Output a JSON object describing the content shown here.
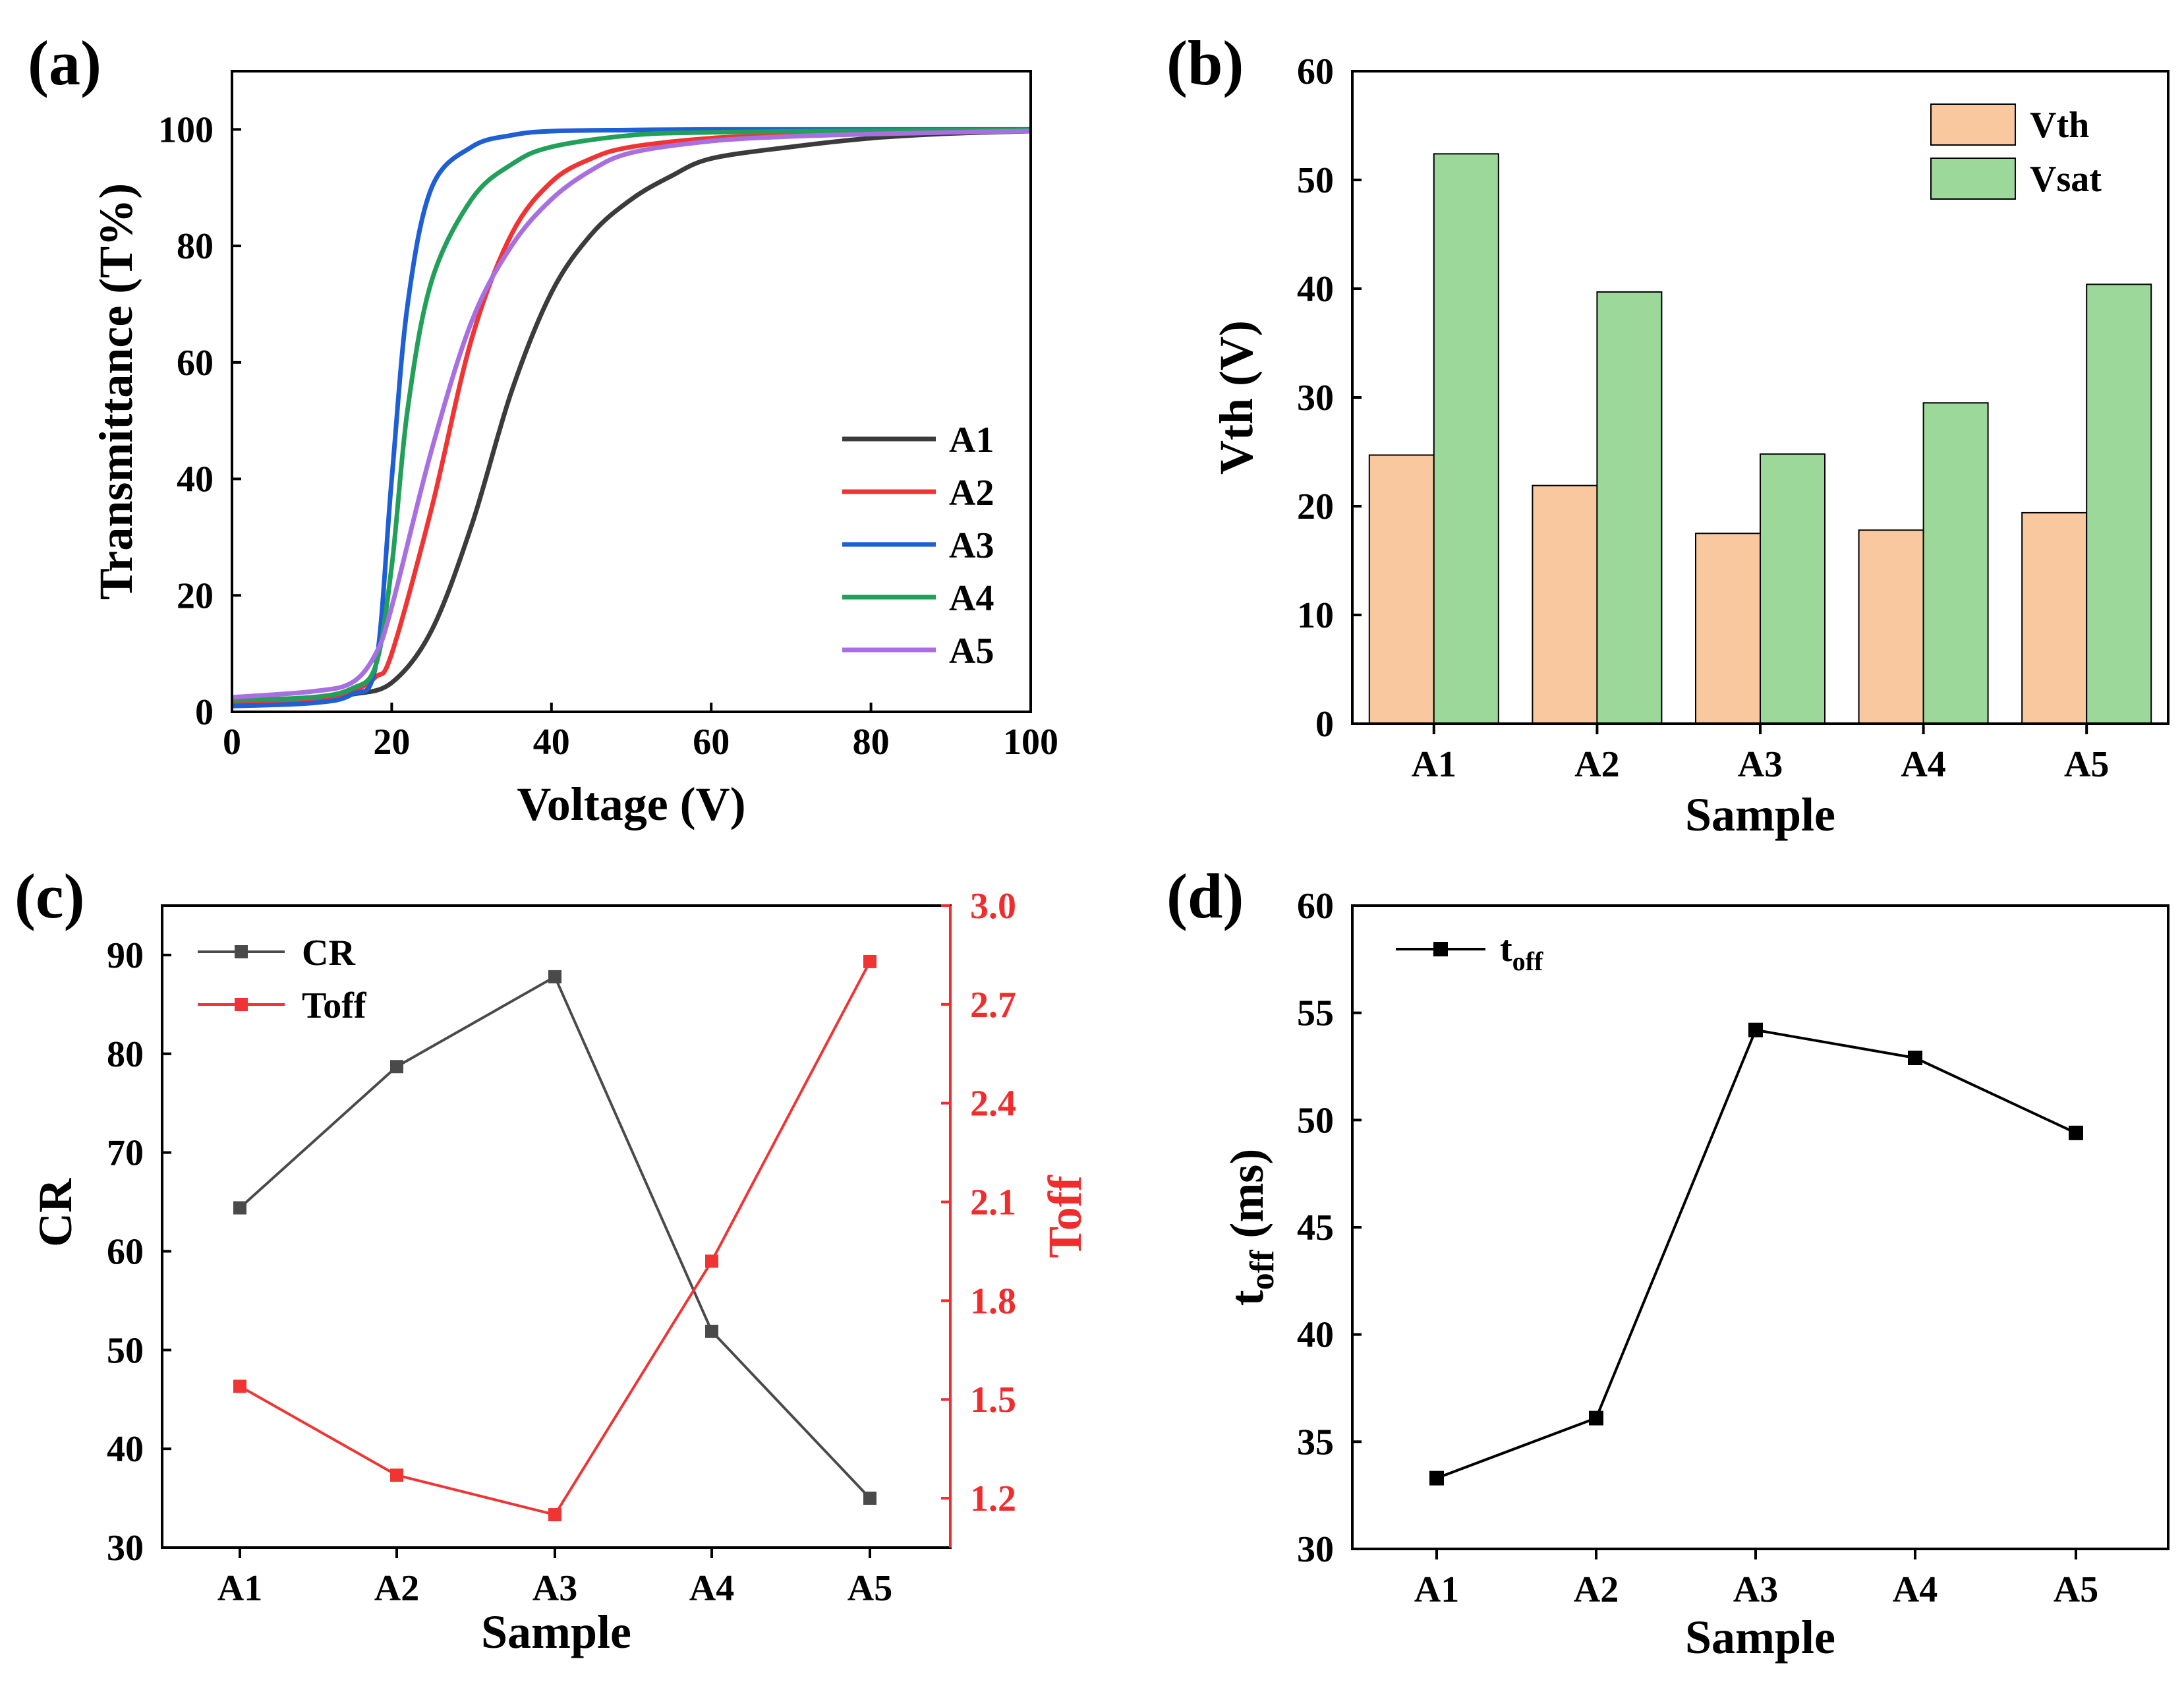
{
  "chart_data": [
    {
      "panel": "(a)",
      "type": "line",
      "xlabel": "Voltage (V)",
      "ylabel": "Transmittance (T%)",
      "xlim": [
        0,
        100
      ],
      "ylim": [
        0,
        110
      ],
      "xticks": [
        0,
        20,
        40,
        60,
        80,
        100
      ],
      "yticks": [
        0,
        20,
        40,
        60,
        80,
        100
      ],
      "legend_position": "lower-right",
      "series": [
        {
          "name": "A1",
          "color": "#3b3b3b",
          "x": [
            0,
            10,
            15,
            20,
            25,
            30,
            35,
            40,
            45,
            50,
            55,
            60,
            70,
            80,
            90,
            100
          ],
          "y": [
            1.5,
            2,
            3,
            5,
            14,
            32,
            55,
            72,
            82,
            88,
            92,
            95,
            97,
            98.5,
            99.3,
            99.7
          ]
        },
        {
          "name": "A2",
          "color": "#f03434",
          "x": [
            0,
            10,
            15,
            18,
            20,
            25,
            30,
            35,
            40,
            45,
            50,
            60,
            70,
            80,
            90,
            100
          ],
          "y": [
            1.5,
            2,
            3.5,
            6,
            10,
            35,
            64,
            82,
            91,
            95,
            97,
            98.5,
            99,
            99.3,
            99.6,
            99.8
          ]
        },
        {
          "name": "A3",
          "color": "#1f5fd6",
          "x": [
            0,
            10,
            15,
            18,
            20,
            22,
            25,
            30,
            35,
            40,
            50,
            60,
            80,
            100
          ],
          "y": [
            1,
            1.5,
            3,
            8,
            40,
            70,
            90,
            97,
            99,
            99.7,
            99.9,
            100,
            100,
            100
          ]
        },
        {
          "name": "A4",
          "color": "#22a05a",
          "x": [
            0,
            10,
            15,
            18,
            20,
            22,
            25,
            30,
            35,
            40,
            50,
            60,
            80,
            100
          ],
          "y": [
            2,
            2.5,
            4,
            8,
            25,
            52,
            74,
            88,
            94,
            97,
            99,
            99.5,
            99.8,
            99.9
          ]
        },
        {
          "name": "A5",
          "color": "#a86fe0",
          "x": [
            0,
            10,
            15,
            18,
            20,
            25,
            30,
            35,
            40,
            45,
            50,
            60,
            70,
            80,
            90,
            100
          ],
          "y": [
            2.5,
            3.5,
            5,
            10,
            18,
            45,
            67,
            80,
            88,
            93,
            96,
            98,
            98.8,
            99.2,
            99.5,
            99.7
          ]
        }
      ]
    },
    {
      "panel": "(b)",
      "type": "bar",
      "xlabel": "Sample",
      "ylabel": "Vth (V)",
      "ylim": [
        0,
        60
      ],
      "yticks": [
        0,
        10,
        20,
        30,
        40,
        50,
        60
      ],
      "categories": [
        "A1",
        "A2",
        "A3",
        "A4",
        "A5"
      ],
      "legend_position": "top-right",
      "series": [
        {
          "name": "Vth",
          "color": "#f9c89e",
          "values": [
            24.7,
            21.9,
            17.5,
            17.8,
            19.4
          ]
        },
        {
          "name": "Vsat",
          "color": "#9dd89b",
          "values": [
            52.4,
            39.7,
            24.8,
            29.5,
            40.4
          ]
        }
      ]
    },
    {
      "panel": "(c)",
      "type": "line",
      "xlabel": "Sample",
      "ylabel": "CR",
      "y2label": "Toff",
      "categories": [
        "A1",
        "A2",
        "A3",
        "A4",
        "A5"
      ],
      "ylim": [
        30,
        95
      ],
      "yticks": [
        30,
        40,
        50,
        60,
        70,
        80,
        90
      ],
      "y2lim": [
        1.05,
        3.0
      ],
      "y2ticks": [
        "1.2",
        "1.5",
        "1.8",
        "2.1",
        "2.4",
        "2.7",
        "3.0"
      ],
      "legend_position": "top-left",
      "series": [
        {
          "name": "CR",
          "axis": "left",
          "color": "#4a4a4a",
          "values": [
            64.4,
            78.7,
            87.8,
            51.9,
            35.0
          ]
        },
        {
          "name": "Toff",
          "axis": "right",
          "color": "#f03434",
          "values": [
            1.54,
            1.27,
            1.15,
            1.92,
            2.83
          ]
        }
      ]
    },
    {
      "panel": "(d)",
      "type": "line",
      "xlabel": "Sample",
      "ylabel": "t",
      "ylabel_sub": "off",
      "ylabel_unit": " (ms)",
      "categories": [
        "A1",
        "A2",
        "A3",
        "A4",
        "A5"
      ],
      "ylim": [
        30,
        60
      ],
      "yticks": [
        30,
        35,
        40,
        45,
        50,
        55,
        60
      ],
      "legend_position": "top-left",
      "series": [
        {
          "name": "t",
          "name_sub": "off",
          "color": "#000000",
          "values": [
            33.3,
            36.1,
            54.2,
            52.9,
            49.4
          ]
        }
      ]
    }
  ]
}
